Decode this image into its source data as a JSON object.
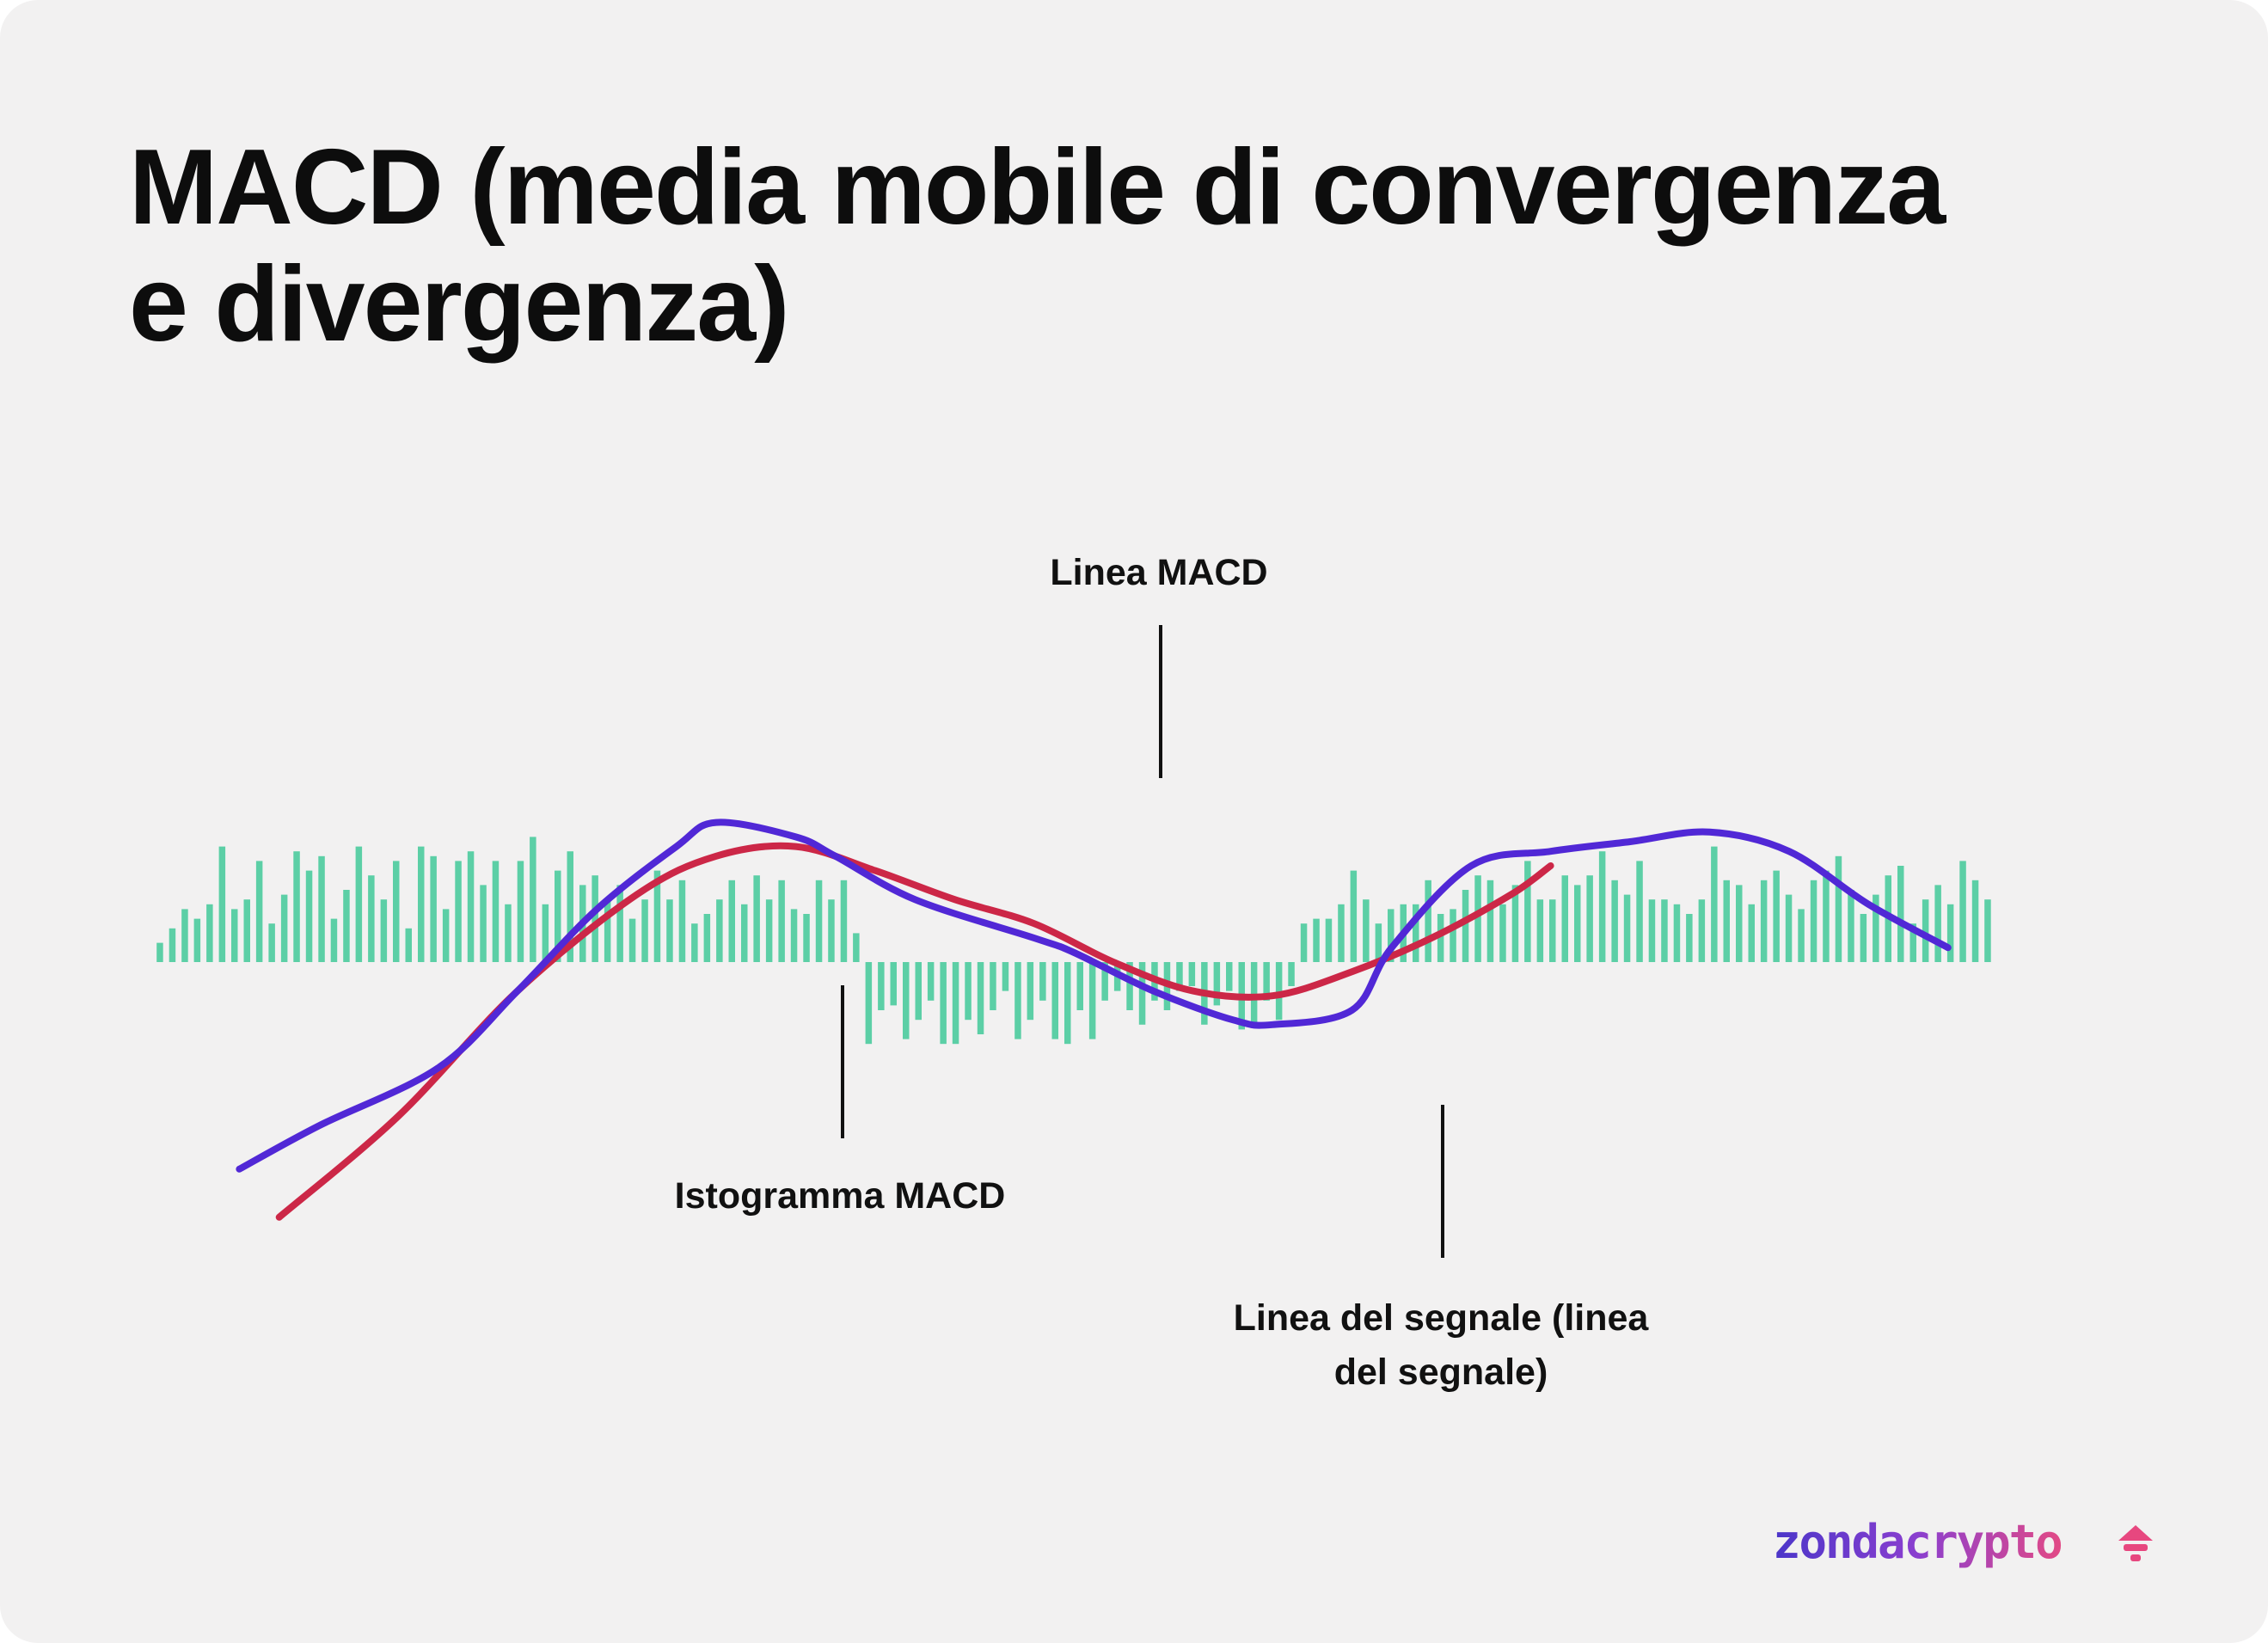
{
  "title": {
    "line1": "MACD (media mobile di convergenza",
    "line2": "e divergenza)"
  },
  "annotations": {
    "macd_line": "Linea MACD",
    "histogram": "Istogramma MACD",
    "signal_line_1": "Linea del segnale (linea",
    "signal_line_2": "del segnale)"
  },
  "brand": {
    "logo_text": "zondacrypto",
    "logo_icon": "hat-icon"
  },
  "colors": {
    "background": "#f2f1f1",
    "macd_line": "#5128d6",
    "signal_line": "#cc2747",
    "histogram": "#5ccfa6"
  },
  "chart_data": {
    "type": "line",
    "title": "MACD (media mobile di convergenza e divergenza)",
    "xlabel": "",
    "ylabel": "",
    "ylim": [
      -4.4,
      3.2
    ],
    "grid": false,
    "axes_visible": false,
    "series": [
      {
        "name": "Linea MACD",
        "kind": "line",
        "points": [
          [
            2,
            -4.3
          ],
          [
            4,
            -3.4
          ],
          [
            7,
            -2.2
          ],
          [
            9,
            -0.6
          ],
          [
            11,
            1.1
          ],
          [
            13,
            2.4
          ],
          [
            14,
            2.9
          ],
          [
            16,
            2.6
          ],
          [
            17,
            2.2
          ],
          [
            19,
            1.3
          ],
          [
            22,
            0.5
          ],
          [
            23,
            0.2
          ],
          [
            25,
            -0.6
          ],
          [
            27,
            -1.2
          ],
          [
            28,
            -1.3
          ],
          [
            30,
            -1.0
          ],
          [
            31,
            0.3
          ],
          [
            33,
            2.0
          ],
          [
            35,
            2.3
          ],
          [
            37,
            2.5
          ],
          [
            39,
            2.7
          ],
          [
            41,
            2.3
          ],
          [
            43,
            1.2
          ],
          [
            45,
            0.3
          ]
        ]
      },
      {
        "name": "Linea del segnale (linea del segnale)",
        "kind": "line",
        "points": [
          [
            3,
            -5.3
          ],
          [
            6,
            -3.2
          ],
          [
            9,
            -0.6
          ],
          [
            12,
            1.4
          ],
          [
            14,
            2.2
          ],
          [
            16,
            2.4
          ],
          [
            18,
            1.9
          ],
          [
            20,
            1.3
          ],
          [
            22,
            0.8
          ],
          [
            24,
            0.0
          ],
          [
            26,
            -0.6
          ],
          [
            28,
            -0.7
          ],
          [
            30,
            -0.2
          ],
          [
            32,
            0.5
          ],
          [
            34,
            1.4
          ],
          [
            35,
            2.0
          ]
        ]
      },
      {
        "name": "Istogramma MACD",
        "kind": "bar",
        "values": [
          0.4,
          0.7,
          1.1,
          0.9,
          1.2,
          2.4,
          1.1,
          1.3,
          2.1,
          0.8,
          1.4,
          2.3,
          1.9,
          2.2,
          0.9,
          1.5,
          2.4,
          1.8,
          1.3,
          2.1,
          0.7,
          2.4,
          2.2,
          1.1,
          2.1,
          2.3,
          1.6,
          2.1,
          1.2,
          2.1,
          2.6,
          1.2,
          1.9,
          2.3,
          1.6,
          1.8,
          1.3,
          1.6,
          0.9,
          1.3,
          1.9,
          1.3,
          1.7,
          0.8,
          1.0,
          1.3,
          1.7,
          1.2,
          1.8,
          1.3,
          1.7,
          1.1,
          1.0,
          1.7,
          1.3,
          1.7,
          0.6,
          -1.7,
          -1.0,
          -0.9,
          -1.6,
          -1.2,
          -0.8,
          -1.7,
          -1.7,
          -1.2,
          -1.5,
          -1.0,
          -0.6,
          -1.6,
          -1.2,
          -0.8,
          -1.6,
          -1.7,
          -1.0,
          -1.6,
          -0.8,
          -0.6,
          -1.0,
          -1.3,
          -0.8,
          -1.0,
          -0.6,
          -0.5,
          -1.3,
          -0.9,
          -0.6,
          -1.4,
          -1.3,
          -0.8,
          -1.2,
          -0.5,
          0.8,
          0.9,
          0.9,
          1.2,
          1.9,
          1.3,
          0.8,
          1.1,
          1.2,
          1.2,
          1.7,
          1.0,
          1.1,
          1.5,
          1.8,
          1.7,
          1.2,
          1.6,
          2.1,
          1.3,
          1.3,
          1.8,
          1.6,
          1.8,
          2.3,
          1.7,
          1.4,
          2.1,
          1.3,
          1.3,
          1.2,
          1.0,
          1.3,
          2.4,
          1.7,
          1.6,
          1.2,
          1.7,
          1.9,
          1.4,
          1.1,
          1.7,
          1.9,
          2.2,
          1.5,
          1.0,
          1.4,
          1.8,
          2.0,
          0.8,
          1.3,
          1.6,
          1.2,
          2.1,
          1.7,
          1.3
        ]
      }
    ]
  }
}
